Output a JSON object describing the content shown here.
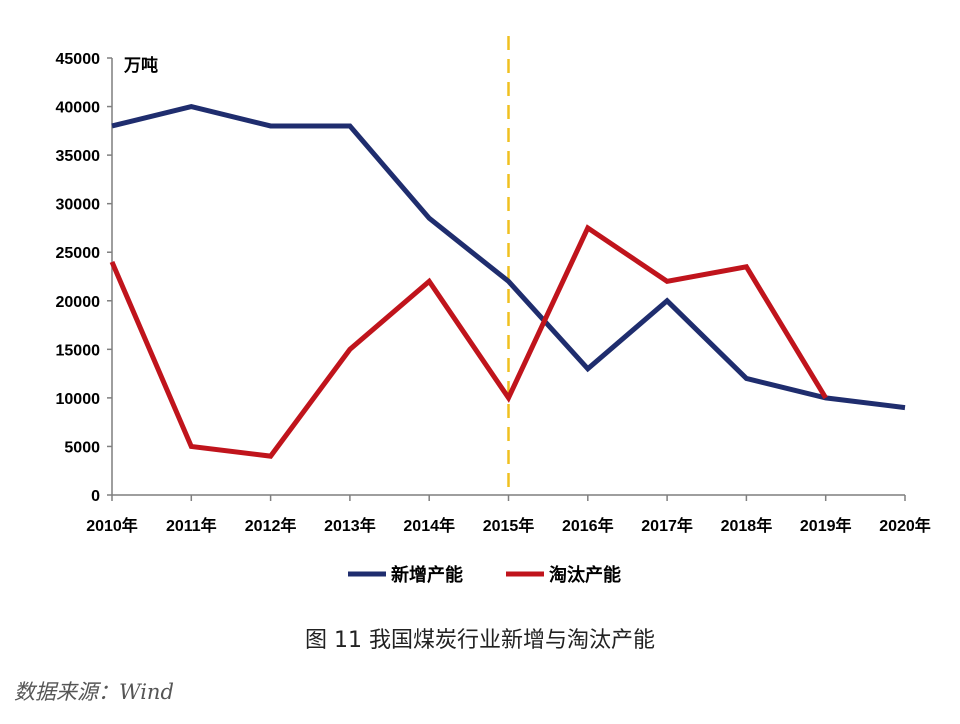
{
  "caption": "图 11  我国煤炭行业新增与淘汰产能",
  "source": "数据来源：Wind",
  "chart_data": {
    "type": "line",
    "unit_label": "万吨",
    "categories": [
      "2010年",
      "2011年",
      "2012年",
      "2013年",
      "2014年",
      "2015年",
      "2016年",
      "2017年",
      "2018年",
      "2019年",
      "2020年"
    ],
    "ylim": [
      0,
      45000
    ],
    "yticks": [
      0,
      5000,
      10000,
      15000,
      20000,
      25000,
      30000,
      35000,
      40000,
      45000
    ],
    "grid": false,
    "legend_position": "bottom",
    "reference_line": {
      "category": "2015年",
      "style": "dashed",
      "color": "#f0c020"
    },
    "series": [
      {
        "name": "新增产能",
        "color": "#1f2d6e",
        "values": [
          38000,
          40000,
          38000,
          38000,
          28500,
          22000,
          13000,
          20000,
          12000,
          10000,
          9000
        ]
      },
      {
        "name": "淘汰产能",
        "color": "#c0141c",
        "values": [
          24000,
          5000,
          4000,
          15000,
          22000,
          10000,
          27500,
          22000,
          23500,
          10000,
          null
        ]
      }
    ]
  }
}
